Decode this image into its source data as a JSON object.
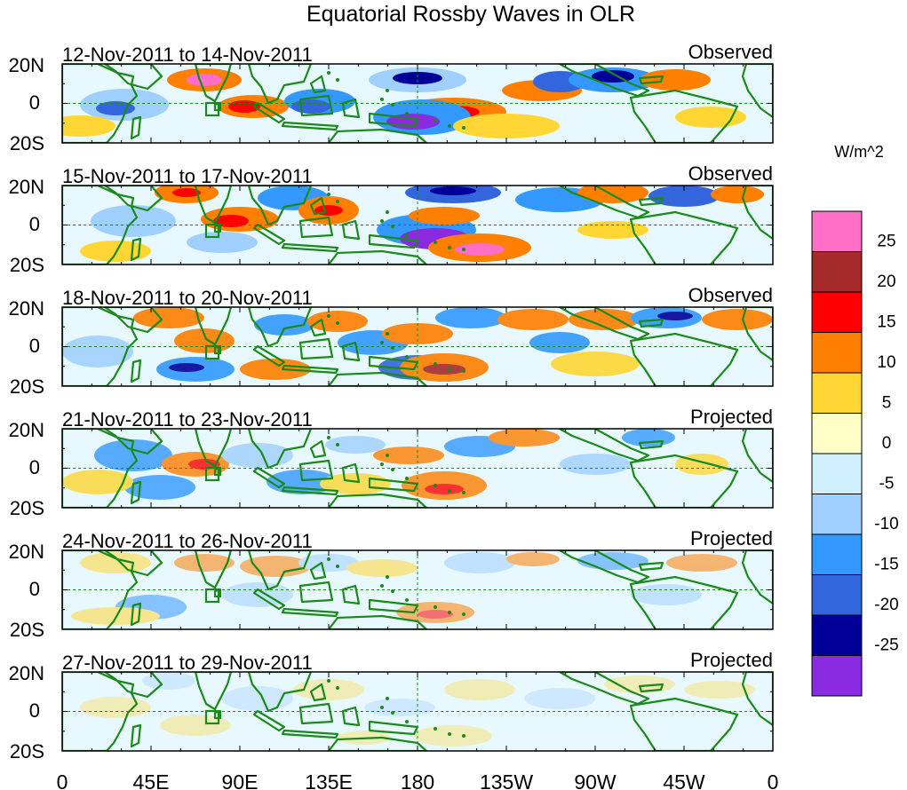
{
  "title": "Equatorial Rossby Waves in OLR",
  "units_label": "W/m^2",
  "lat_labels": [
    "20N",
    "0",
    "20S"
  ],
  "lon_labels": [
    "0",
    "45E",
    "90E",
    "135E",
    "180",
    "135W",
    "90W",
    "45W",
    "0"
  ],
  "panels": [
    {
      "dates": "12-Nov-2011 to 14-Nov-2011",
      "kind": "Observed",
      "intensity": 1.0
    },
    {
      "dates": "15-Nov-2011 to 17-Nov-2011",
      "kind": "Observed",
      "intensity": 1.0
    },
    {
      "dates": "18-Nov-2011 to 20-Nov-2011",
      "kind": "Observed",
      "intensity": 0.9
    },
    {
      "dates": "21-Nov-2011 to 23-Nov-2011",
      "kind": "Projected",
      "intensity": 0.8
    },
    {
      "dates": "24-Nov-2011 to 26-Nov-2011",
      "kind": "Projected",
      "intensity": 0.55
    },
    {
      "dates": "27-Nov-2011 to 29-Nov-2011",
      "kind": "Projected",
      "intensity": 0.35
    }
  ],
  "colorbar": {
    "colors": [
      "#ff6ec7",
      "#a52a2a",
      "#ff0000",
      "#ff7f00",
      "#ffd633",
      "#ffffc8",
      "#d0f0ff",
      "#a0d0ff",
      "#3399ff",
      "#3366dd",
      "#000099",
      "#8a2be2"
    ],
    "labels": [
      "25",
      "20",
      "15",
      "10",
      "5",
      "0",
      "-5",
      "-10",
      "-15",
      "-20",
      "-25"
    ]
  },
  "colors": {
    "coast": "#1a8a1a",
    "dashed": "#1a8a1a",
    "frame": "#000000"
  }
}
